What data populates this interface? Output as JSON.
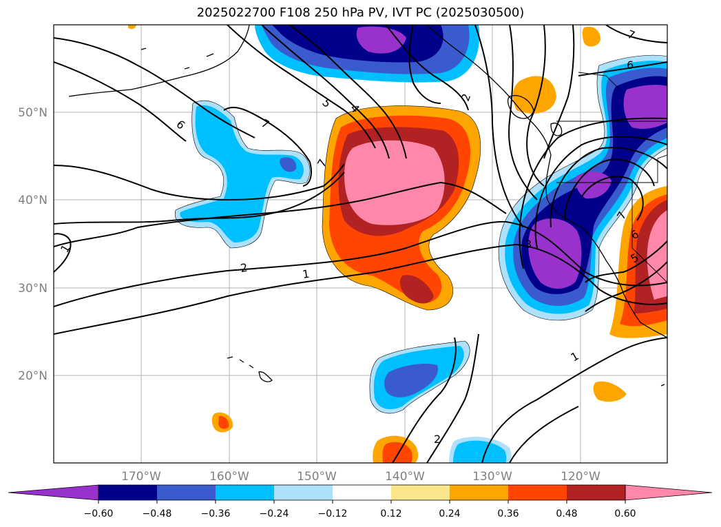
{
  "title": "2025022700 F108 250 hPa PV, IVT PC (2025030500)",
  "map": {
    "lat_labels": [
      "50°N",
      "40°N",
      "30°N",
      "20°N"
    ],
    "lon_labels": [
      "170°W",
      "160°W",
      "150°W",
      "140°W",
      "130°W",
      "120°W"
    ],
    "contour_labels": [
      "7",
      "6",
      "5",
      "4",
      "2",
      "7",
      "6",
      "7",
      "6",
      "5",
      "2",
      "1",
      "1",
      "1",
      "2",
      "7",
      "3"
    ]
  },
  "colorbar": {
    "colors": [
      "#9932cc",
      "#00008b",
      "#3a5bcd",
      "#00bfff",
      "#ade0fb",
      "#ffffff",
      "#fce68c",
      "#ffa500",
      "#ff4500",
      "#b22222",
      "#ff88aa"
    ],
    "tick_labels": [
      "−0.60",
      "−0.48",
      "−0.36",
      "−0.24",
      "−0.12",
      "0.12",
      "0.24",
      "0.36",
      "0.48",
      "0.60"
    ]
  }
}
